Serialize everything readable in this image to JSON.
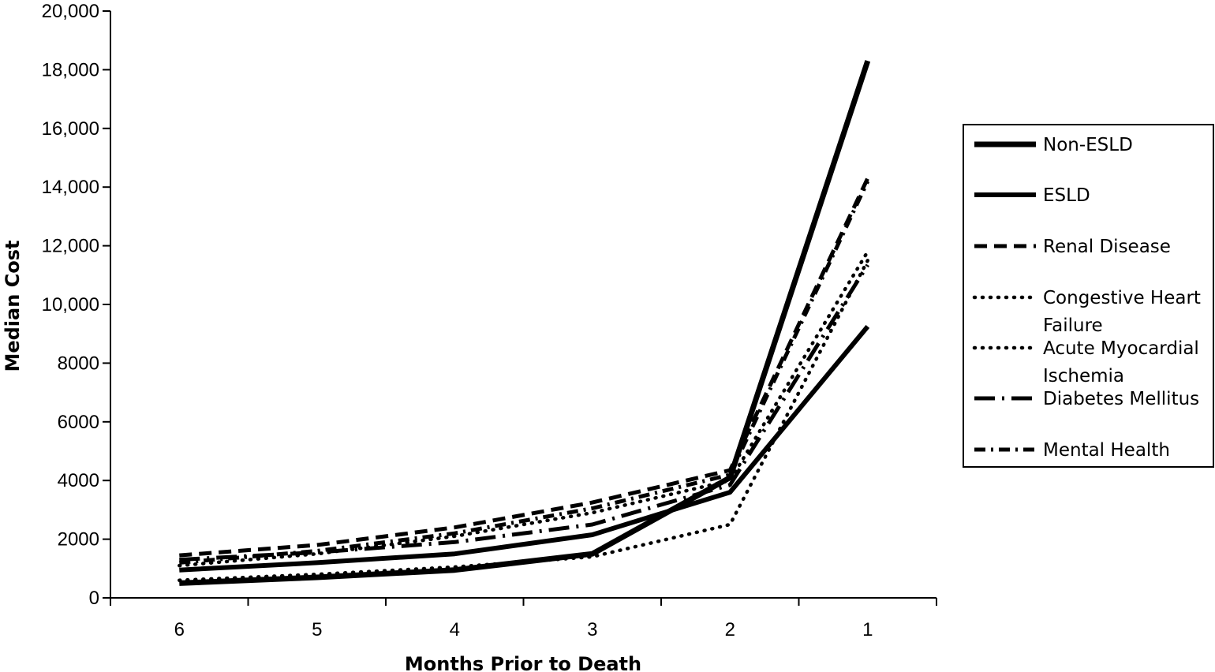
{
  "chart_data": {
    "type": "line",
    "title": "",
    "xlabel": "Months Prior to Death",
    "ylabel": "Median Cost",
    "categories": [
      "6",
      "5",
      "4",
      "3",
      "2",
      "1"
    ],
    "yticks": [
      "0",
      "2000",
      "4000",
      "6000",
      "8000",
      "10,000",
      "12,000",
      "14,000",
      "16,000",
      "18,000",
      "20,000"
    ],
    "ylim": [
      0,
      20000
    ],
    "grid": false,
    "legend_position": "right",
    "series": [
      {
        "name": "Non-ESLD",
        "style": "solid-thick",
        "values": [
          500,
          700,
          950,
          1500,
          4100,
          18300
        ]
      },
      {
        "name": "ESLD",
        "style": "solid",
        "values": [
          950,
          1200,
          1500,
          2150,
          3600,
          9250
        ]
      },
      {
        "name": "Renal Disease",
        "style": "dash",
        "values": [
          1450,
          1800,
          2400,
          3250,
          4350,
          14300
        ]
      },
      {
        "name": "Congestive Heart Failure",
        "style": "dot",
        "values": [
          600,
          800,
          1050,
          1400,
          2500,
          11500
        ]
      },
      {
        "name": "Acute Myocardial Ischemia",
        "style": "dot",
        "values": [
          1100,
          1500,
          2100,
          2900,
          4000,
          11800
        ]
      },
      {
        "name": "Diabetes Mellitus",
        "style": "long-dash-dot",
        "values": [
          1300,
          1550,
          1900,
          2500,
          3850,
          11350
        ]
      },
      {
        "name": "Mental Health",
        "style": "dash-dot",
        "values": [
          1200,
          1600,
          2200,
          3050,
          4200,
          14200
        ]
      }
    ]
  }
}
